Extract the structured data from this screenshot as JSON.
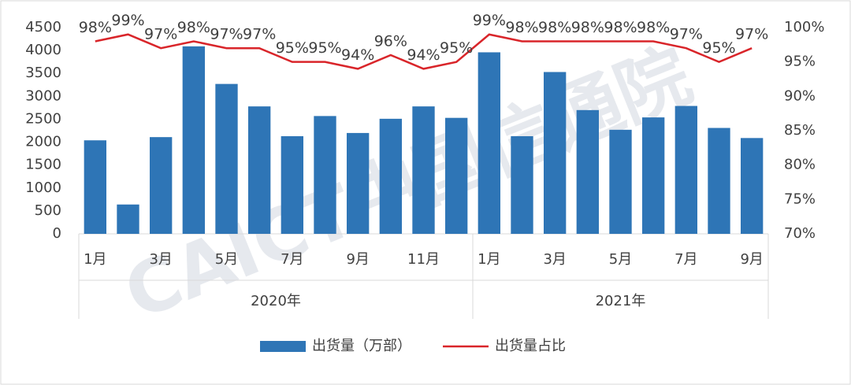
{
  "chart_data": {
    "type": "bar-line",
    "watermark": "CAICT中国信通院",
    "category_groups": [
      {
        "name": "2020年",
        "categories": [
          "1月",
          null,
          "3月",
          null,
          "5月",
          null,
          "7月",
          null,
          "9月",
          null,
          "11月",
          null
        ]
      },
      {
        "name": "2021年",
        "categories": [
          "1月",
          null,
          "3月",
          null,
          "5月",
          null,
          "7月",
          null,
          "9月"
        ]
      }
    ],
    "series": [
      {
        "name": "出货量（万部）",
        "type": "bar",
        "color": "#2e75b6",
        "values": [
          2040,
          640,
          2110,
          4090,
          3270,
          2780,
          2130,
          2570,
          2200,
          2510,
          2780,
          2530,
          3960,
          2130,
          3530,
          2700,
          2270,
          2540,
          2790,
          2310,
          2090
        ]
      },
      {
        "name": "出货量占比",
        "type": "line",
        "axis": "y2",
        "color": "#d9252a",
        "values": [
          98,
          99,
          97,
          98,
          97,
          97,
          95,
          95,
          94,
          96,
          94,
          95,
          99,
          98,
          98,
          98,
          98,
          98,
          97,
          95,
          97
        ],
        "value_labels": [
          "98%",
          "99%",
          "97%",
          "98%",
          "97%",
          "97%",
          "95%",
          "95%",
          "94%",
          "96%",
          "94%",
          "95%",
          "99%",
          "98%",
          "98%",
          "98%",
          "98%",
          "98%",
          "97%",
          "95%",
          "97%"
        ]
      }
    ],
    "ylim": [
      0,
      4500
    ],
    "yticks": [
      0,
      500,
      1000,
      1500,
      2000,
      2500,
      3000,
      3500,
      4000,
      4500
    ],
    "y2lim": [
      70,
      100
    ],
    "y2ticks": [
      {
        "value": 70,
        "label": "70%"
      },
      {
        "value": 75,
        "label": "75%"
      },
      {
        "value": 80,
        "label": "80%"
      },
      {
        "value": 85,
        "label": "85%"
      },
      {
        "value": 90,
        "label": "90%"
      },
      {
        "value": 95,
        "label": "95%"
      },
      {
        "value": 100,
        "label": "100%"
      }
    ],
    "legend": "bottom"
  }
}
